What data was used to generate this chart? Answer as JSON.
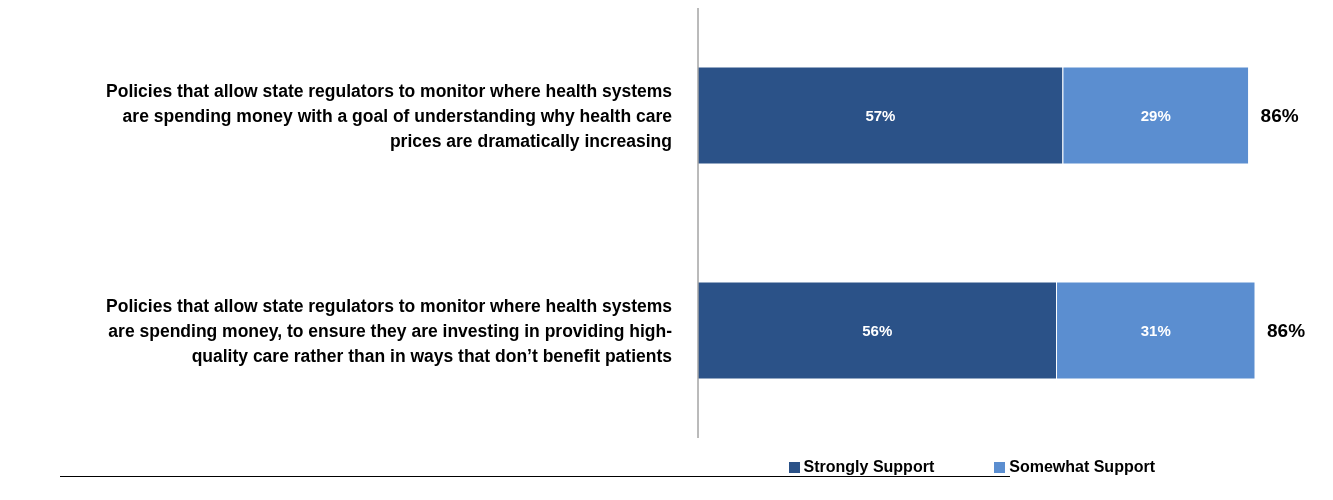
{
  "chart_data": {
    "type": "bar",
    "orientation": "horizontal",
    "stacked": true,
    "categories": [
      "Policies that allow state regulators to monitor where health systems are spending money with a goal of understanding why health care prices are dramatically increasing",
      "Policies that allow state regulators to monitor where health systems are spending money, to ensure they are investing in providing high-quality care rather than in ways that don’t benefit patients"
    ],
    "series": [
      {
        "name": "Strongly Support",
        "color": "#2b5288",
        "values": [
          57,
          56
        ],
        "value_labels": [
          "57%",
          "56%"
        ]
      },
      {
        "name": "Somewhat Support",
        "color": "#5b8ed0",
        "values": [
          29,
          31
        ],
        "value_labels": [
          "29%",
          "31%"
        ]
      }
    ],
    "totals": [
      "86%",
      "86%"
    ],
    "tick_labels": "y",
    "legend": "bottom"
  }
}
